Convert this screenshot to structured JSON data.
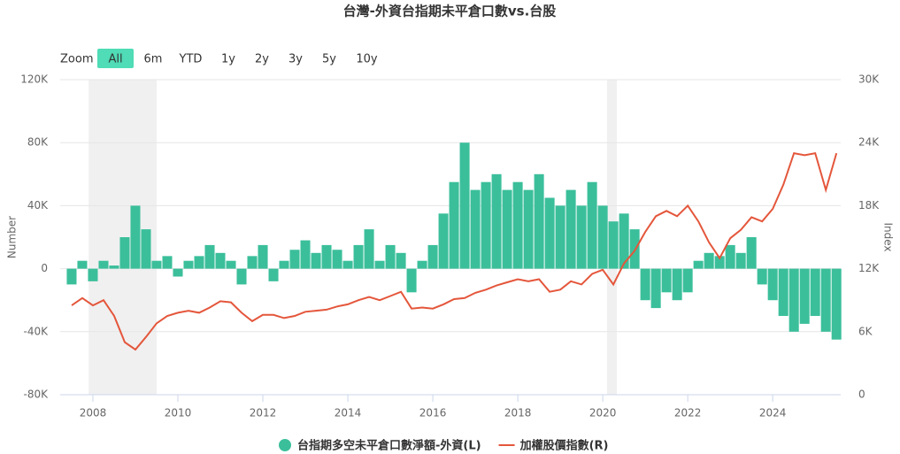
{
  "zoom_label": "Zoom",
  "zoom_buttons": [
    "All",
    "6m",
    "YTD",
    "1y",
    "2y",
    "3y",
    "5y",
    "10y"
  ],
  "selected_zoom": 0,
  "chart_data": {
    "type": "combo",
    "title": "台灣-外資台指期未平倉口數vs.台股",
    "y_label": "Number",
    "y2_label": "Index",
    "x": [
      2007.5,
      2007.75,
      2008,
      2008.25,
      2008.5,
      2008.75,
      2009,
      2009.25,
      2009.5,
      2009.75,
      2010,
      2010.25,
      2010.5,
      2010.75,
      2011,
      2011.25,
      2011.5,
      2011.75,
      2012,
      2012.25,
      2012.5,
      2012.75,
      2013,
      2013.25,
      2013.5,
      2013.75,
      2014,
      2014.25,
      2014.5,
      2014.75,
      2015,
      2015.25,
      2015.5,
      2015.75,
      2016,
      2016.25,
      2016.5,
      2016.75,
      2017,
      2017.25,
      2017.5,
      2017.75,
      2018,
      2018.25,
      2018.5,
      2018.75,
      2019,
      2019.25,
      2019.5,
      2019.75,
      2020,
      2020.25,
      2020.5,
      2020.75,
      2021,
      2021.25,
      2021.5,
      2021.75,
      2022,
      2022.25,
      2022.5,
      2022.75,
      2023,
      2023.25,
      2023.5,
      2023.75,
      2024,
      2024.25,
      2024.5,
      2024.75,
      2025,
      2025.25,
      2025.5
    ],
    "xlim": [
      2007.23,
      2025.6
    ],
    "xticks": [
      2008,
      2010,
      2012,
      2014,
      2016,
      2018,
      2020,
      2022,
      2024
    ],
    "ylim": [
      -80000,
      120000
    ],
    "yticks": [
      {
        "value": -80000,
        "label": "-80K"
      },
      {
        "value": -40000,
        "label": "-40K"
      },
      0,
      {
        "value": 40000,
        "label": "40K"
      },
      {
        "value": 80000,
        "label": "80K"
      },
      {
        "value": 120000,
        "label": "120K"
      }
    ],
    "y2lim": [
      0,
      30000
    ],
    "y2ticks": [
      0,
      {
        "value": 6000,
        "label": "6K"
      },
      {
        "value": 12000,
        "label": "12K"
      },
      {
        "value": 18000,
        "label": "18K"
      },
      {
        "value": 24000,
        "label": "24K"
      },
      {
        "value": 30000,
        "label": "30K"
      }
    ],
    "grid": true,
    "shaded_ranges": [
      [
        2007.9,
        2009.5
      ],
      [
        2020.1,
        2020.33
      ]
    ],
    "shade_color": "#f0f0f0",
    "legend": "bottom",
    "series": [
      {
        "name": "台指期多空未平倉口數淨額-外資(L)",
        "type": "bar",
        "color": "#3bbf9b",
        "values": [
          -10000,
          5000,
          -8000,
          5000,
          2000,
          20000,
          40000,
          25000,
          5000,
          8000,
          -5000,
          5000,
          8000,
          15000,
          10000,
          5000,
          -10000,
          8000,
          15000,
          -8000,
          5000,
          12000,
          18000,
          10000,
          15000,
          12000,
          5000,
          15000,
          25000,
          5000,
          15000,
          10000,
          -15000,
          5000,
          15000,
          35000,
          55000,
          80000,
          50000,
          55000,
          60000,
          50000,
          55000,
          50000,
          60000,
          45000,
          40000,
          50000,
          40000,
          55000,
          40000,
          30000,
          35000,
          25000,
          -20000,
          -25000,
          -15000,
          -20000,
          -15000,
          5000,
          10000,
          8000,
          15000,
          10000,
          20000,
          -10000,
          -20000,
          -30000,
          -40000,
          -35000,
          -30000,
          -40000,
          -45000
        ]
      },
      {
        "name": "加權股價指數(R)",
        "type": "line",
        "axis": "y2",
        "color": "#e4563b",
        "values": [
          8500,
          9200,
          8500,
          9000,
          7500,
          5000,
          4300,
          5500,
          6800,
          7500,
          7800,
          8000,
          7800,
          8300,
          8900,
          8800,
          7800,
          7000,
          7600,
          7600,
          7300,
          7500,
          7900,
          8000,
          8100,
          8400,
          8600,
          9000,
          9300,
          9000,
          9400,
          9800,
          8200,
          8300,
          8200,
          8600,
          9100,
          9200,
          9700,
          10000,
          10400,
          10700,
          11000,
          10800,
          11000,
          9800,
          10000,
          10800,
          10500,
          11500,
          11900,
          10500,
          12500,
          13700,
          15500,
          17000,
          17500,
          17000,
          18000,
          16500,
          14500,
          13000,
          14900,
          15700,
          16900,
          16500,
          17700,
          20000,
          23000,
          22800,
          23000,
          19500,
          23000
        ]
      }
    ]
  }
}
